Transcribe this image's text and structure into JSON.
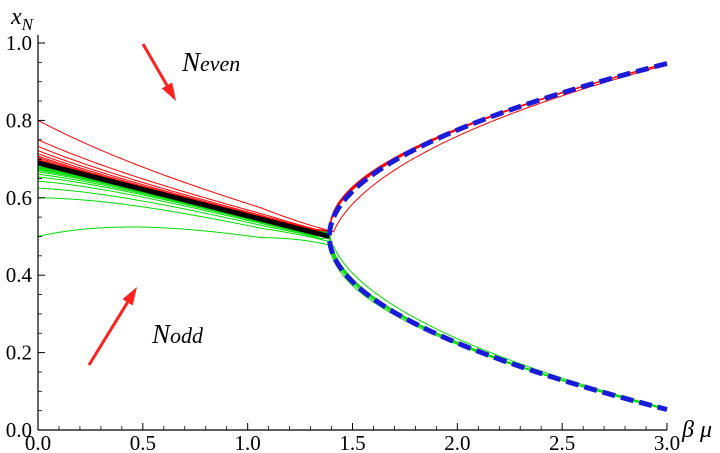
{
  "chart_data": {
    "type": "line",
    "title": "",
    "xlabel": "β μ",
    "ylabel": "x_N",
    "xlim": [
      0,
      3
    ],
    "ylim": [
      0,
      1
    ],
    "x_ticks": [
      "0.0",
      "0.5",
      "1.0",
      "1.5",
      "2.0",
      "2.5",
      "3.0"
    ],
    "y_ticks": [
      "0.0",
      "0.2",
      "0.4",
      "0.6",
      "0.8",
      "1.0"
    ],
    "grid": false,
    "critical_point": {
      "x": 1.39,
      "y": 0.5
    },
    "colors": {
      "even": "#ff0000",
      "odd": "#00dd00",
      "limit": "#000000",
      "envelope": "#1a1ad9",
      "arrow": "#ff2020"
    },
    "series": [
      {
        "group": "even",
        "x0_value": 0.8
      },
      {
        "group": "even",
        "x0_value": 0.75
      },
      {
        "group": "even",
        "x0_value": 0.733
      },
      {
        "group": "even",
        "x0_value": 0.722
      },
      {
        "group": "even",
        "x0_value": 0.714
      },
      {
        "group": "even",
        "x0_value": 0.708
      },
      {
        "group": "even",
        "x0_value": 0.704
      },
      {
        "group": "even",
        "x0_value": 0.7
      },
      {
        "group": "even",
        "x0_value": 0.697
      },
      {
        "group": "even",
        "x0_value": 0.695
      },
      {
        "group": "even",
        "x0_value": 0.693
      },
      {
        "group": "even",
        "x0_value": 0.691
      },
      {
        "group": "odd",
        "x0_value": 0.5
      },
      {
        "group": "odd",
        "x0_value": 0.6
      },
      {
        "group": "odd",
        "x0_value": 0.625
      },
      {
        "group": "odd",
        "x0_value": 0.643
      },
      {
        "group": "odd",
        "x0_value": 0.654
      },
      {
        "group": "odd",
        "x0_value": 0.661
      },
      {
        "group": "odd",
        "x0_value": 0.667
      },
      {
        "group": "odd",
        "x0_value": 0.671
      },
      {
        "group": "odd",
        "x0_value": 0.674
      },
      {
        "group": "odd",
        "x0_value": 0.677
      },
      {
        "group": "odd",
        "x0_value": 0.679
      },
      {
        "group": "odd",
        "x0_value": 0.681
      }
    ],
    "limit_line": {
      "x": [
        0,
        1.39
      ],
      "y": [
        0.69,
        0.5
      ]
    },
    "envelope": {
      "x_start": 1.39,
      "x_end": 3.0,
      "upper_end": 0.947,
      "lower_end": 0.053
    },
    "annotations": [
      {
        "id": "even",
        "main": "N",
        "sub": "even"
      },
      {
        "id": "odd",
        "main": "N",
        "sub": "odd"
      }
    ]
  }
}
